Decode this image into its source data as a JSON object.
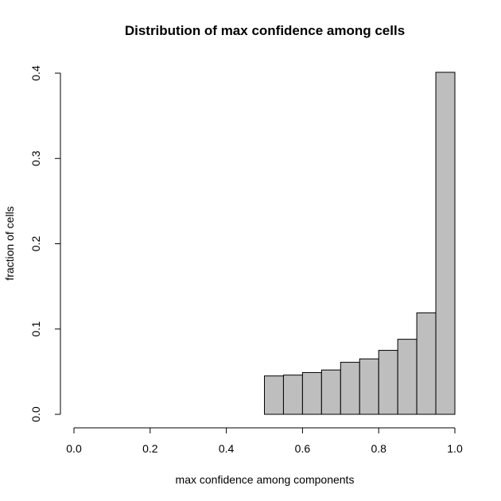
{
  "chart_data": {
    "type": "bar",
    "title": "Distribution of max confidence among cells",
    "xlabel": "max confidence among components",
    "ylabel": "fraction of cells",
    "xlim": [
      0,
      1
    ],
    "ylim": [
      0,
      0.4
    ],
    "xticks": [
      "0.0",
      "0.2",
      "0.4",
      "0.6",
      "0.8",
      "1.0"
    ],
    "xtick_values": [
      0,
      0.2,
      0.4,
      0.6,
      0.8,
      1.0
    ],
    "yticks": [
      "0.0",
      "0.1",
      "0.2",
      "0.3",
      "0.4"
    ],
    "ytick_values": [
      0,
      0.1,
      0.2,
      0.3,
      0.4
    ],
    "bin_width": 0.05,
    "bins_start": [
      0.5,
      0.55,
      0.6,
      0.65,
      0.7,
      0.75,
      0.8,
      0.85,
      0.9,
      0.95
    ],
    "values": [
      0.045,
      0.046,
      0.049,
      0.052,
      0.061,
      0.065,
      0.075,
      0.088,
      0.119,
      0.401
    ],
    "bar_color": "#bebebe",
    "grid": false,
    "legend": "none"
  }
}
